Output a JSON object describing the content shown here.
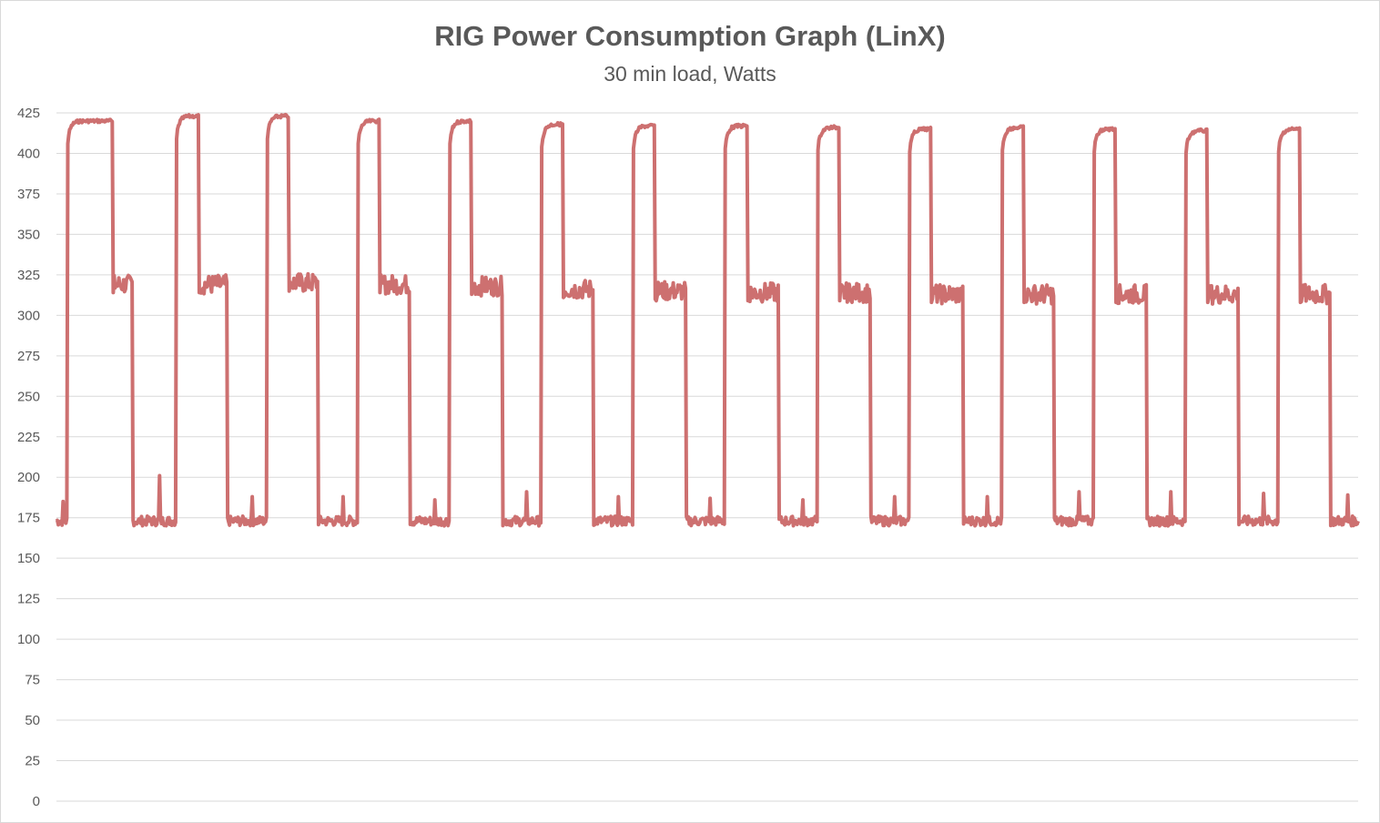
{
  "chart_data": {
    "type": "line",
    "title": "RIG Power Consumption Graph (LinX)",
    "subtitle": "30 min load, Watts",
    "xlabel": "",
    "ylabel": "",
    "ylim": [
      0,
      425
    ],
    "yticks": [
      0,
      25,
      50,
      75,
      100,
      125,
      150,
      175,
      200,
      225,
      250,
      275,
      300,
      325,
      350,
      375,
      400,
      425
    ],
    "grid": "horizontal",
    "legend": "none",
    "line_color": "#cd7070",
    "series": [
      {
        "cycles": [
          {
            "idle_start_index": 0,
            "load_start_index": 12,
            "load_peak": 421,
            "steady_start_index": 60,
            "steady_level": 319,
            "idle_level": 173,
            "idle_spike": 185
          },
          {
            "idle_start_index": 81,
            "load_start_index": 127,
            "load_peak": 424,
            "steady_start_index": 151,
            "steady_level": 319,
            "idle_level": 173,
            "idle_spike": 201
          },
          {
            "idle_start_index": 181,
            "load_start_index": 223,
            "load_peak": 424,
            "steady_start_index": 246,
            "steady_level": 320,
            "idle_level": 173,
            "idle_spike": 188
          },
          {
            "idle_start_index": 277,
            "load_start_index": 319,
            "load_peak": 421,
            "steady_start_index": 342,
            "steady_level": 319,
            "idle_level": 173,
            "idle_spike": 188
          },
          {
            "idle_start_index": 374,
            "load_start_index": 416,
            "load_peak": 421,
            "steady_start_index": 439,
            "steady_level": 318,
            "idle_level": 173,
            "idle_spike": 186
          },
          {
            "idle_start_index": 472,
            "load_start_index": 513,
            "load_peak": 419,
            "steady_start_index": 536,
            "steady_level": 316,
            "idle_level": 173,
            "idle_spike": 191
          },
          {
            "idle_start_index": 568,
            "load_start_index": 610,
            "load_peak": 418,
            "steady_start_index": 633,
            "steady_level": 315,
            "idle_level": 173,
            "idle_spike": 188
          },
          {
            "idle_start_index": 666,
            "load_start_index": 707,
            "load_peak": 418,
            "steady_start_index": 731,
            "steady_level": 314,
            "idle_level": 173,
            "idle_spike": 187
          },
          {
            "idle_start_index": 764,
            "load_start_index": 805,
            "load_peak": 417,
            "steady_start_index": 828,
            "steady_level": 314,
            "idle_level": 173,
            "idle_spike": 186
          },
          {
            "idle_start_index": 861,
            "load_start_index": 902,
            "load_peak": 416,
            "steady_start_index": 925,
            "steady_level": 313,
            "idle_level": 173,
            "idle_spike": 188
          },
          {
            "idle_start_index": 959,
            "load_start_index": 1000,
            "load_peak": 417,
            "steady_start_index": 1023,
            "steady_level": 313,
            "idle_level": 173,
            "idle_spike": 188
          },
          {
            "idle_start_index": 1055,
            "load_start_index": 1097,
            "load_peak": 416,
            "steady_start_index": 1120,
            "steady_level": 313,
            "idle_level": 173,
            "idle_spike": 191
          },
          {
            "idle_start_index": 1153,
            "load_start_index": 1194,
            "load_peak": 415,
            "steady_start_index": 1217,
            "steady_level": 313,
            "idle_level": 173,
            "idle_spike": 191
          },
          {
            "idle_start_index": 1250,
            "load_start_index": 1292,
            "load_peak": 416,
            "steady_start_index": 1315,
            "steady_level": 313,
            "idle_level": 173,
            "idle_spike": 190
          }
        ],
        "final_idle_start_index": 1347,
        "final_idle_level": 173,
        "final_idle_spike": 189,
        "total_points": 1377
      }
    ]
  }
}
